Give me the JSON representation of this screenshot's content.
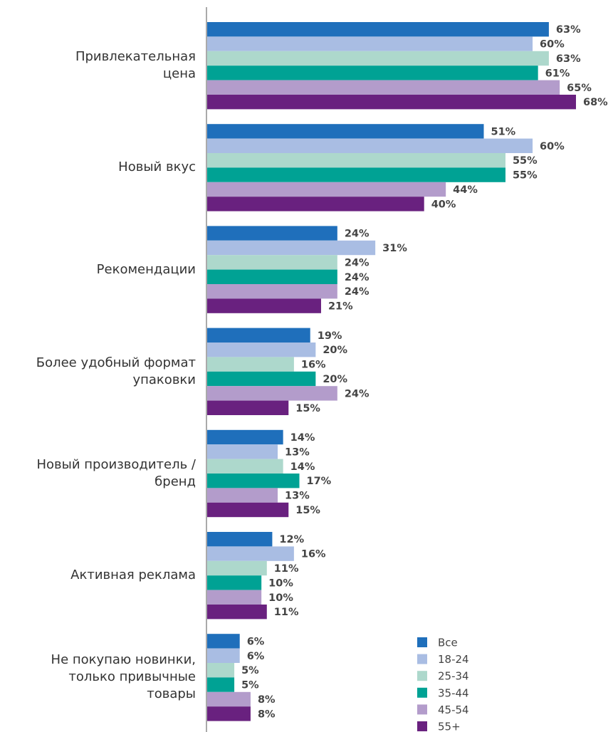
{
  "chart_data": {
    "type": "bar",
    "orientation": "horizontal",
    "categories": [
      "Привлекательная\nцена",
      "Новый вкус",
      "Рекомендации",
      "Более удобный формат\nупаковки",
      "Новый производитель /\nбренд",
      "Активная реклама",
      "Не покупаю новинки,\nтолько привычные\nтовары"
    ],
    "series": [
      {
        "name": "Все",
        "color": "#1f6fbb",
        "values": [
          63,
          51,
          24,
          19,
          14,
          12,
          6
        ],
        "value_labels": [
          "63%",
          "51%",
          "24%",
          "19%",
          "14%",
          "12%",
          "6%"
        ]
      },
      {
        "name": "18-24",
        "color": "#a9bde3",
        "values": [
          60,
          60,
          31,
          20,
          13,
          16,
          6
        ],
        "value_labels": [
          "60%",
          "60%",
          "31%",
          "20%",
          "13%",
          "16%",
          "6%"
        ]
      },
      {
        "name": "25-34",
        "color": "#add8cc",
        "values": [
          63,
          55,
          24,
          16,
          14,
          11,
          5
        ],
        "value_labels": [
          "63%",
          "55%",
          "24%",
          "16%",
          "14%",
          "11%",
          "5%"
        ]
      },
      {
        "name": "35-44",
        "color": "#00a294",
        "values": [
          61,
          55,
          24,
          20,
          17,
          10,
          5
        ],
        "value_labels": [
          "61%",
          "55%",
          "24%",
          "20%",
          "17%",
          "10%",
          "5%"
        ]
      },
      {
        "name": "45-54",
        "color": "#b39ccb",
        "values": [
          65,
          44,
          24,
          24,
          13,
          10,
          8
        ],
        "value_labels": [
          "65%",
          "44%",
          "24%",
          "24%",
          "13%",
          "10%",
          "8%"
        ]
      },
      {
        "name": "55+",
        "color": "#69217f",
        "values": [
          68,
          40,
          21,
          15,
          15,
          11,
          8
        ],
        "value_labels": [
          "68%",
          "40%",
          "21%",
          "15%",
          "15%",
          "11%",
          "8%"
        ]
      }
    ]
  }
}
